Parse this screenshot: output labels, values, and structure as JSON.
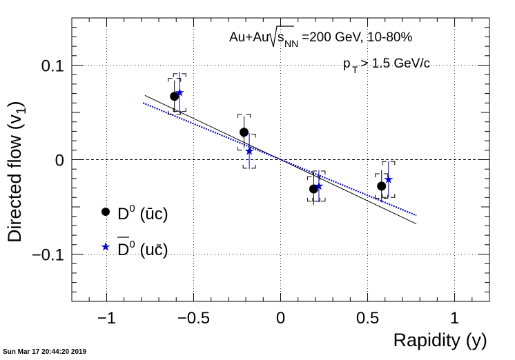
{
  "chart_data": {
    "type": "scatter",
    "title": "",
    "annotations": {
      "system_prefix": "Au+Au",
      "sqrt_symbol": "√",
      "s_label": "s",
      "s_sub": "NN",
      "energy_centrality": "=200 GeV, 10-80%",
      "pt_p": "p",
      "pt_sub": "T",
      "pt_cut": " > 1.5 GeV/c"
    },
    "xlabel": "Rapidity (y)",
    "ylabel": {
      "main": "Directed flow (v",
      "sub": "1",
      "close": ")"
    },
    "xlim": [
      -1.2,
      1.2
    ],
    "ylim": [
      -0.15,
      0.15
    ],
    "xticks": [
      {
        "value": -1,
        "label": "−1"
      },
      {
        "value": -0.5,
        "label": "−0.5"
      },
      {
        "value": 0,
        "label": "0"
      },
      {
        "value": 0.5,
        "label": "0.5"
      },
      {
        "value": 1,
        "label": "1"
      }
    ],
    "yticks": [
      {
        "value": 0.1,
        "label": "0.1"
      },
      {
        "value": 0,
        "label": "0"
      },
      {
        "value": -0.1,
        "label": "−0.1"
      }
    ],
    "grid": true,
    "legend_position": "bottom-left",
    "legend": [
      {
        "main": "D",
        "sup": "0",
        "tail": " (ūc)",
        "overline": false
      },
      {
        "main": "D",
        "sup": "0",
        "tail": " (uc̄)",
        "overline": true
      }
    ],
    "series": [
      {
        "marker": "circle",
        "color": "#000000",
        "points": [
          {
            "x": -0.61,
            "y": 0.067,
            "stat": 0.017,
            "sys": 0.019
          },
          {
            "x": -0.21,
            "y": 0.029,
            "stat": 0.017,
            "sys": 0.019
          },
          {
            "x": 0.19,
            "y": -0.031,
            "stat": 0.017,
            "sys": 0.013
          },
          {
            "x": 0.58,
            "y": -0.028,
            "stat": 0.017,
            "sys": 0.013
          }
        ]
      },
      {
        "marker": "star",
        "color": "#0000cc",
        "points": [
          {
            "x": -0.58,
            "y": 0.071,
            "stat": 0.022,
            "sys": 0.02
          },
          {
            "x": -0.18,
            "y": 0.009,
            "stat": 0.019,
            "sys": 0.018
          },
          {
            "x": 0.22,
            "y": -0.028,
            "stat": 0.017,
            "sys": 0.016
          },
          {
            "x": 0.62,
            "y": -0.021,
            "stat": 0.019,
            "sys": 0.019
          }
        ]
      }
    ],
    "fits": [
      {
        "style": "solid",
        "color": "#000000",
        "x": [
          -0.78,
          0.78
        ],
        "y": [
          0.068,
          -0.068
        ]
      },
      {
        "style": "dotted",
        "color": "#0000cc",
        "x": [
          -0.79,
          0.78
        ],
        "y": [
          0.06,
          -0.059
        ]
      }
    ],
    "zero_line": true
  },
  "footer": {
    "timestamp": "Sun Mar 17 20:44:20 2019"
  }
}
